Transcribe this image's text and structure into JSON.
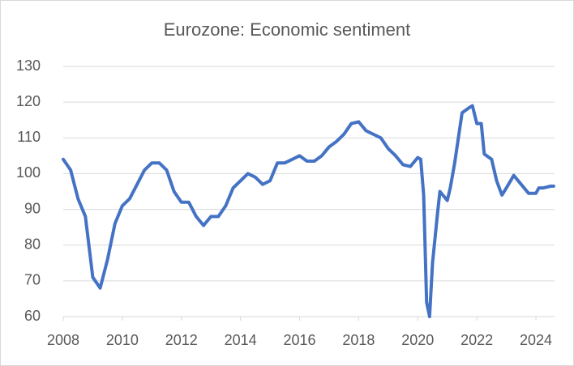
{
  "chart_data": {
    "type": "line",
    "title": "Eurozone: Economic sentiment",
    "x": [
      2008.0,
      2008.25,
      2008.5,
      2008.75,
      2009.0,
      2009.25,
      2009.5,
      2009.75,
      2010.0,
      2010.25,
      2010.5,
      2010.75,
      2011.0,
      2011.25,
      2011.5,
      2011.75,
      2012.0,
      2012.25,
      2012.5,
      2012.75,
      2013.0,
      2013.25,
      2013.5,
      2013.75,
      2014.0,
      2014.25,
      2014.5,
      2014.75,
      2015.0,
      2015.25,
      2015.5,
      2015.75,
      2016.0,
      2016.25,
      2016.5,
      2016.75,
      2017.0,
      2017.25,
      2017.5,
      2017.75,
      2018.0,
      2018.25,
      2018.5,
      2018.75,
      2019.0,
      2019.25,
      2019.5,
      2019.75,
      2020.0,
      2020.1,
      2020.2,
      2020.3,
      2020.4,
      2020.5,
      2020.67,
      2020.75,
      2021.0,
      2021.1,
      2021.25,
      2021.5,
      2021.75,
      2021.85,
      2022.0,
      2022.15,
      2022.25,
      2022.5,
      2022.67,
      2022.85,
      2023.0,
      2023.25,
      2023.5,
      2023.75,
      2024.0,
      2024.1,
      2024.25,
      2024.5,
      2024.6
    ],
    "series": [
      {
        "name": "Economic sentiment",
        "color": "#4472c4",
        "values": [
          104,
          101,
          93,
          88,
          71,
          68,
          76,
          86,
          91,
          93,
          97,
          101,
          103,
          103,
          101,
          95,
          92,
          92,
          88,
          85.5,
          88,
          88,
          91,
          96,
          98,
          100,
          99,
          97,
          98,
          103,
          103,
          104,
          105,
          103.5,
          103.5,
          105,
          107.5,
          109,
          111,
          114,
          114.5,
          112,
          111,
          110,
          107,
          105,
          102.5,
          102,
          104.5,
          104,
          94,
          64,
          60,
          75,
          89,
          95,
          92.5,
          96,
          103,
          117,
          118.5,
          119,
          114,
          114,
          105.5,
          104,
          98,
          94,
          96,
          99.5,
          97,
          94.5,
          94.5,
          96,
          96,
          96.5,
          96.5
        ]
      }
    ],
    "xlim": [
      2008,
      2024.63
    ],
    "xticks": [
      2008,
      2010,
      2012,
      2014,
      2016,
      2018,
      2020,
      2022,
      2024
    ],
    "ylim": [
      60,
      130
    ],
    "yticks": [
      60,
      70,
      80,
      90,
      100,
      110,
      120,
      130
    ],
    "grid": true
  }
}
